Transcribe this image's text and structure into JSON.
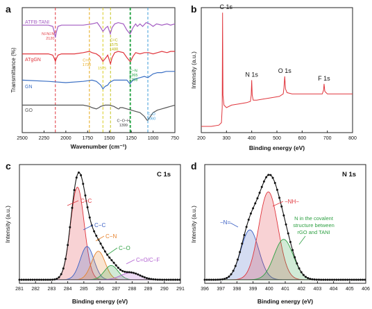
{
  "chart_data": [
    {
      "panel": "a",
      "type": "line",
      "xlabel": "Wavenumber (cm⁻¹)",
      "ylabel": "Transmittance (%)",
      "xlim": [
        2500,
        750
      ],
      "xticks": [
        "2500",
        "2250",
        "2000",
        "1750",
        "1500",
        "1250",
        "1000",
        "750"
      ],
      "series": [
        {
          "name": "ATFB-TANI",
          "color": "#a35cc2",
          "offset": 0.86,
          "x": [
            2500,
            2300,
            2200,
            2150,
            2130,
            2120,
            2110,
            2090,
            2050,
            1900,
            1800,
            1700,
            1640,
            1600,
            1575,
            1540,
            1520,
            1490,
            1470,
            1440,
            1400,
            1340,
            1300,
            1265,
            1255,
            1230,
            1200,
            1180,
            1150,
            1120,
            1080,
            1040,
            1000,
            960,
            900,
            840,
            800,
            750
          ],
          "y": [
            0,
            0,
            0,
            -0.01,
            -0.06,
            -0.1,
            -0.06,
            -0.01,
            0,
            0,
            0,
            0.01,
            0.02,
            -0.02,
            -0.05,
            -0.02,
            -0.01,
            -0.07,
            -0.02,
            0.01,
            0.02,
            0.01,
            -0.04,
            -0.07,
            -0.06,
            -0.02,
            0.01,
            -0.01,
            0.01,
            -0.01,
            0.02,
            0.01,
            -0.01,
            0.01,
            0,
            0.01,
            0,
            0.01
          ]
        },
        {
          "name": "ATgGN",
          "color": "#e0343b",
          "offset": 0.63,
          "x": [
            2500,
            2300,
            2200,
            2150,
            2130,
            2120,
            2110,
            2090,
            2050,
            1900,
            1800,
            1730,
            1700,
            1650,
            1610,
            1575,
            1540,
            1520,
            1488,
            1470,
            1440,
            1400,
            1340,
            1300,
            1265,
            1258,
            1230,
            1200,
            1150,
            1100,
            1050,
            1000,
            950,
            900,
            840,
            800,
            750
          ],
          "y": [
            0,
            0,
            0,
            -0.01,
            -0.04,
            -0.06,
            -0.04,
            -0.01,
            0,
            0,
            0.01,
            0.02,
            0.01,
            0,
            -0.02,
            -0.06,
            -0.03,
            -0.01,
            -0.08,
            -0.03,
            0.01,
            0.02,
            0.01,
            -0.03,
            -0.06,
            -0.06,
            -0.02,
            0.01,
            0,
            0.01,
            0.01,
            0,
            0.01,
            0.02,
            0.01,
            0.02,
            0.02
          ]
        },
        {
          "name": "GN",
          "color": "#3a6fc4",
          "offset": 0.42,
          "x": [
            2500,
            2200,
            2000,
            1800,
            1700,
            1650,
            1600,
            1575,
            1550,
            1520,
            1500,
            1450,
            1400,
            1350,
            1300,
            1265,
            1255,
            1230,
            1200,
            1150,
            1100,
            1060,
            1040,
            1000,
            950,
            900,
            850,
            800,
            750
          ],
          "y": [
            0,
            -0.01,
            -0.02,
            -0.01,
            0,
            -0.01,
            -0.04,
            -0.07,
            -0.05,
            -0.04,
            -0.02,
            0,
            0,
            0,
            0,
            -0.03,
            -0.02,
            0,
            0.01,
            0.02,
            0.03,
            0.02,
            0.03,
            0.05,
            0.06,
            0.06,
            0.07,
            0.07,
            0.07
          ]
        },
        {
          "name": "GO",
          "color": "#555555",
          "offset": 0.22,
          "x": [
            2500,
            2200,
            2000,
            1800,
            1730,
            1700,
            1650,
            1620,
            1600,
            1550,
            1500,
            1450,
            1400,
            1390,
            1380,
            1350,
            1300,
            1250,
            1200,
            1150,
            1100,
            1070,
            1060,
            1050,
            1030,
            1000,
            950,
            900,
            850,
            800,
            750
          ],
          "y": [
            0,
            0,
            0,
            0,
            -0.01,
            -0.02,
            -0.03,
            -0.02,
            -0.01,
            0,
            0,
            -0.01,
            -0.03,
            -0.03,
            -0.02,
            -0.02,
            -0.03,
            -0.04,
            -0.05,
            -0.06,
            -0.09,
            -0.12,
            -0.12,
            -0.11,
            -0.09,
            -0.06,
            -0.04,
            -0.03,
            -0.02,
            -0.01,
            0
          ]
        }
      ],
      "vlines": [
        {
          "x": 2120,
          "color": "#e0343b"
        },
        {
          "x": 1730,
          "color": "#e6a817"
        },
        {
          "x": 1575,
          "color": "#d9cc1e"
        },
        {
          "x": 1488,
          "color": "#c3c21b"
        },
        {
          "x": 1265,
          "color": "#1a9e3a"
        },
        {
          "x": 1258,
          "color": "#1a9e3a"
        },
        {
          "x": 1060,
          "color": "#3a9ad9"
        }
      ],
      "annotations": [
        {
          "lines": [
            "N=N=N",
            "2120"
          ],
          "color": "#e0343b",
          "x": 2130,
          "y": 0.78,
          "anchor": "end"
        },
        {
          "lines": [
            "C=O",
            "1730"
          ],
          "color": "#e6a817",
          "x": 1760,
          "y": 0.57,
          "anchor": "middle"
        },
        {
          "lines": [
            "C=C",
            "1575",
            "1488"
          ],
          "color": "#b8b300",
          "x": 1450,
          "y": 0.73,
          "anchor": "middle"
        },
        {
          "lines": [
            "1575"
          ],
          "color": "#d9cc1e",
          "x": 1585,
          "y": 0.505,
          "anchor": "middle"
        },
        {
          "lines": [
            "C−N",
            "1265",
            "1258"
          ],
          "color": "#1a9e3a",
          "x": 1225,
          "y": 0.485,
          "anchor": "middle"
        },
        {
          "lines": [
            "C−O−H",
            "1399"
          ],
          "color": "#333333",
          "x": 1340,
          "y": 0.085,
          "anchor": "middle"
        },
        {
          "lines": [
            "C−O",
            "1060"
          ],
          "color": "#3a9ad9",
          "x": 1020,
          "y": 0.14,
          "anchor": "middle"
        }
      ]
    },
    {
      "panel": "b",
      "type": "line",
      "xlabel": "Binding energy (eV)",
      "ylabel": "Intensity (a.u.)",
      "xlim": [
        200,
        800
      ],
      "xticks": [
        "200",
        "300",
        "400",
        "500",
        "600",
        "700",
        "800"
      ],
      "series": [
        {
          "color": "#e0343b",
          "x": [
            200,
            240,
            270,
            280,
            283,
            284.5,
            286,
            290,
            300,
            320,
            350,
            380,
            395,
            398,
            400,
            402,
            406,
            420,
            450,
            480,
            510,
            525,
            528,
            531,
            534,
            540,
            560,
            600,
            650,
            680,
            685,
            687,
            690,
            700,
            750,
            800
          ],
          "y": [
            0.05,
            0.05,
            0.06,
            0.08,
            0.2,
            0.96,
            0.3,
            0.22,
            0.2,
            0.22,
            0.23,
            0.24,
            0.25,
            0.3,
            0.42,
            0.3,
            0.26,
            0.26,
            0.27,
            0.28,
            0.29,
            0.31,
            0.36,
            0.45,
            0.35,
            0.32,
            0.31,
            0.31,
            0.31,
            0.31,
            0.34,
            0.39,
            0.33,
            0.31,
            0.31,
            0.31
          ]
        }
      ],
      "peak_labels": [
        {
          "text": "C 1s",
          "x": 284.5,
          "y": 0.96
        },
        {
          "text": "N 1s",
          "x": 400,
          "y": 0.42
        },
        {
          "text": "O 1s",
          "x": 531,
          "y": 0.45
        },
        {
          "text": "F 1s",
          "x": 687,
          "y": 0.39
        }
      ]
    },
    {
      "panel": "c",
      "type": "area",
      "title": "C 1s",
      "xlabel": "Binding energy (eV)",
      "ylabel": "Intensity (a.u.)",
      "xlim": [
        281,
        291
      ],
      "xticks": [
        "281",
        "282",
        "283",
        "284",
        "285",
        "286",
        "287",
        "288",
        "289",
        "290",
        "291"
      ],
      "peaks": [
        {
          "label": "C=C",
          "center": 284.6,
          "height": 0.78,
          "fwhm": 1.0,
          "color": "#e0343b"
        },
        {
          "label": "C−C",
          "center": 285.2,
          "height": 0.28,
          "fwhm": 1.0,
          "color": "#3a5fc4"
        },
        {
          "label": "C−N",
          "center": 285.9,
          "height": 0.24,
          "fwhm": 1.0,
          "color": "#e6822c"
        },
        {
          "label": "C−O",
          "center": 286.7,
          "height": 0.12,
          "fwhm": 1.0,
          "color": "#2ea043"
        },
        {
          "label": "C=O/C−F",
          "center": 287.9,
          "height": 0.06,
          "fwhm": 1.4,
          "color": "#b05fd0"
        }
      ],
      "baseline": 0.03
    },
    {
      "panel": "d",
      "type": "area",
      "title": "N 1s",
      "xlabel": "Binding energy (eV)",
      "ylabel": "Intensity (a.u.)",
      "xlim": [
        396,
        406
      ],
      "xticks": [
        "396",
        "397",
        "398",
        "399",
        "400",
        "401",
        "402",
        "403",
        "404",
        "405",
        "406"
      ],
      "peaks": [
        {
          "label": "−N=",
          "center": 398.8,
          "height": 0.42,
          "fwhm": 1.3,
          "color": "#3a5fc4"
        },
        {
          "label": "−NH−",
          "center": 399.95,
          "height": 0.74,
          "fwhm": 1.4,
          "color": "#e0343b"
        },
        {
          "label": "N in the covalent structure between rGO and TANI",
          "center": 400.9,
          "height": 0.34,
          "fwhm": 1.4,
          "color": "#2ea043"
        }
      ],
      "baseline": 0.03
    }
  ],
  "panel_letters": {
    "a": "a",
    "b": "b",
    "c": "c",
    "d": "d"
  },
  "panel_c": {
    "title": "C 1s",
    "labels": {
      "cc_double": "C=C",
      "cc_single": "C−C",
      "cn": "C−N",
      "co": "C−O",
      "cof": "C=O/C−F"
    }
  },
  "panel_d": {
    "title": "N 1s",
    "labels": {
      "n_eq": "−N=",
      "nh": "−NH−",
      "cov1": "N in the covalent",
      "cov2": "structure between",
      "cov3": "rGO and TANI"
    }
  },
  "panel_a": {
    "series_labels": {
      "atfb": "ATFB-TANI",
      "atggn": "ATgGN",
      "gn": "GN",
      "go": "GO"
    }
  }
}
